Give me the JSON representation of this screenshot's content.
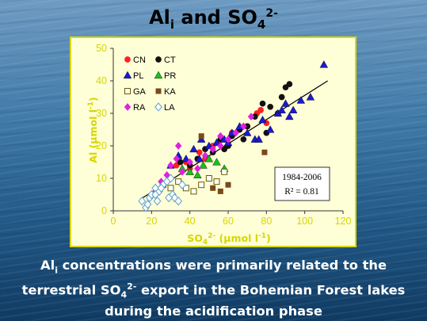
{
  "title": {
    "main": "Al",
    "sub": "i",
    "mid": " and SO",
    "sub2": "4",
    "sup": "2-"
  },
  "caption": {
    "line1_a": "Al",
    "line1_sub": "i",
    "line1_b": " concentrations were primarily related to the",
    "line2_a": "terrestrial SO",
    "line2_sub": "4",
    "line2_sup": "2-",
    "line2_b": " export in the Bohemian Forest lakes",
    "line3": "during the acidification phase"
  },
  "chart_data": {
    "type": "scatter",
    "xlabel": {
      "a": "SO",
      "sub": "4",
      "sup": "2-",
      "b": " (µmol l",
      "sup2": "-1",
      "c": ")"
    },
    "ylabel": {
      "a": "Al (µmol l",
      "sup": "-1",
      "b": ")"
    },
    "xlim": [
      0,
      120
    ],
    "ylim": [
      0,
      50
    ],
    "xticks": [
      "0",
      "20",
      "40",
      "60",
      "80",
      "100",
      "120"
    ],
    "yticks": [
      "0",
      "10",
      "20",
      "30",
      "40",
      "50"
    ],
    "annotation": {
      "line1": "1984-2006",
      "line2": "R² = 0.81"
    },
    "regression": {
      "x": [
        14,
        112
      ],
      "y": [
        3.5,
        40
      ]
    },
    "legend_placement": "top-left",
    "series": [
      {
        "name": "CN",
        "marker": "circle",
        "color": "#ff2020",
        "x": [
          33,
          38,
          40,
          45,
          48,
          52,
          55,
          58,
          62,
          66,
          70,
          75,
          77,
          80
        ],
        "y": [
          14,
          15,
          13,
          18,
          16,
          20,
          21,
          19,
          24,
          25,
          26,
          30,
          31,
          27
        ]
      },
      {
        "name": "CT",
        "marker": "circle",
        "color": "#111111",
        "x": [
          35,
          40,
          44,
          48,
          52,
          56,
          60,
          62,
          66,
          70,
          74,
          78,
          82,
          86,
          90,
          92,
          88,
          80,
          68,
          58
        ],
        "y": [
          15,
          14,
          16,
          19,
          18,
          22,
          20,
          23,
          25,
          26,
          29,
          33,
          32,
          30,
          38,
          39,
          35,
          24,
          22,
          19
        ]
      },
      {
        "name": "PL",
        "marker": "triangle",
        "color": "#1a1ad0",
        "x": [
          30,
          34,
          38,
          42,
          46,
          50,
          54,
          58,
          62,
          66,
          70,
          74,
          78,
          82,
          86,
          90,
          94,
          98,
          103,
          110,
          92,
          88,
          76,
          60,
          45
        ],
        "y": [
          14,
          17,
          16,
          19,
          22,
          20,
          21,
          22,
          24,
          26,
          24,
          22,
          28,
          25,
          30,
          33,
          31,
          34,
          35,
          45,
          29,
          31,
          22,
          21,
          16
        ]
      },
      {
        "name": "PR",
        "marker": "triangle",
        "color": "#19c019",
        "x": [
          36,
          40,
          44,
          47,
          50,
          54,
          58
        ],
        "y": [
          13,
          12,
          11,
          14,
          16,
          15,
          13
        ]
      },
      {
        "name": "GA",
        "marker": "square-open",
        "color": "#6b5a00",
        "x": [
          26,
          30,
          34,
          38,
          42,
          46,
          50,
          54,
          58
        ],
        "y": [
          8,
          7,
          9,
          7,
          6,
          8,
          10,
          9,
          12
        ]
      },
      {
        "name": "KA",
        "marker": "square",
        "color": "#7a4a1a",
        "x": [
          52,
          56,
          60,
          79,
          46
        ],
        "y": [
          7,
          6,
          8,
          18,
          23
        ]
      },
      {
        "name": "RA",
        "marker": "diamond",
        "color": "#e020e0",
        "x": [
          22,
          25,
          28,
          30,
          33,
          36,
          40,
          44,
          48,
          52,
          56,
          60,
          64,
          68,
          72,
          34,
          56
        ],
        "y": [
          6,
          9,
          11,
          14,
          16,
          12,
          15,
          13,
          17,
          19,
          20,
          22,
          24,
          26,
          29,
          20,
          23
        ]
      },
      {
        "name": "LA",
        "marker": "diamond-open",
        "color": "#5aa0c8",
        "x": [
          15,
          17,
          19,
          20,
          22,
          23,
          24,
          26,
          28,
          30,
          31,
          32,
          34,
          36,
          18,
          22,
          25,
          29
        ],
        "y": [
          3,
          1,
          4,
          5,
          7,
          3,
          6,
          8,
          9,
          10,
          5,
          4,
          3,
          8,
          2,
          5,
          7,
          4
        ]
      }
    ]
  }
}
